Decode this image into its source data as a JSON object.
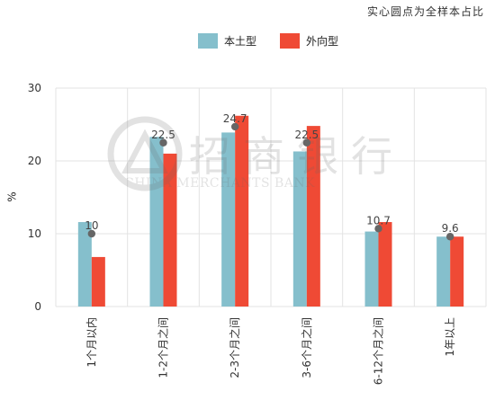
{
  "header": {
    "note": "实心圆点为全样本占比"
  },
  "watermark": {
    "text_cn": "招商银行",
    "text_en": "CHINA MERCHANTS BANK"
  },
  "colors": {
    "domestic": "#85bfcc",
    "foreign": "#ef4a35",
    "dot": "#666666",
    "grid": "#e3e3e3"
  },
  "chart_data": {
    "type": "bar",
    "categories": [
      "1个月以内",
      "1-2个月之间",
      "2-3个月之间",
      "3-6个月之间",
      "6-12个月之间",
      "1年以上"
    ],
    "series": [
      {
        "name": "本土型",
        "values": [
          11.6,
          23.3,
          23.9,
          21.3,
          10.3,
          9.6
        ]
      },
      {
        "name": "外向型",
        "values": [
          6.8,
          21.0,
          26.2,
          24.8,
          11.6,
          9.6
        ]
      }
    ],
    "overall": {
      "values": [
        10,
        22.5,
        24.7,
        22.5,
        10.7,
        9.6
      ],
      "labels": [
        "10",
        "22.5",
        "24.7",
        "22.5",
        "10.7",
        "9.6"
      ]
    },
    "ylabel": "%",
    "yticks": [
      0,
      10,
      20,
      30
    ],
    "ylim": [
      0,
      30
    ],
    "grid": true,
    "legend_position": "top"
  }
}
